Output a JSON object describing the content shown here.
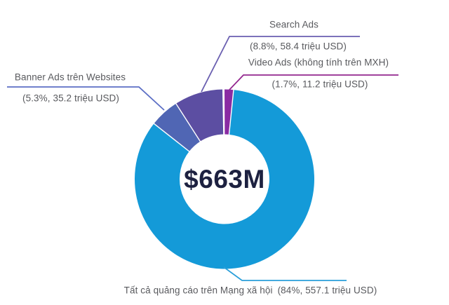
{
  "chart_data": {
    "type": "pie",
    "variant": "donut",
    "center_label": "$663M",
    "unit": "triệu USD",
    "legend_position": "callouts",
    "start_angle_deg": -0.3,
    "segments": [
      {
        "key": "video",
        "label": "Video Ads (không tính trên MXH)",
        "pct": 1.7,
        "value_trieu_usd": 11.2,
        "color": "#8a2ba3"
      },
      {
        "key": "social",
        "label": "Tất cả quảng cáo trên Mạng xã hội",
        "pct": 84,
        "value_trieu_usd": 557.1,
        "color": "#149ad8"
      },
      {
        "key": "banner",
        "label": "Banner Ads trên Websites",
        "pct": 5.3,
        "value_trieu_usd": 35.2,
        "color": "#5066b4"
      },
      {
        "key": "search",
        "label": "Search Ads",
        "pct": 8.8,
        "value_trieu_usd": 58.4,
        "color": "#5c4ea2"
      },
      {
        "key": "other",
        "label": "",
        "pct": 0.2,
        "color": "#c9c5de"
      }
    ]
  },
  "callouts": {
    "search": {
      "title": "Search Ads",
      "value": "(8.8%, 58.4 triệu USD)",
      "line_color": "#6a5fb0"
    },
    "video": {
      "title": "Video Ads (không tính trên MXH)",
      "value": "(1.7%, 11.2 triệu USD)",
      "line_color": "#93278f"
    },
    "banner": {
      "title": "Banner Ads trên Websites",
      "value": "(5.3%, 35.2 triệu USD)",
      "line_color": "#5c6fc5"
    },
    "social": {
      "title": "Tất cả quảng cáo trên Mạng xã hội",
      "value": "(84%, 557.1 triệu USD)",
      "line_color": "#2a9fda"
    }
  },
  "colors": {
    "center_text": "#1d2140",
    "label_text": "#595a5e",
    "background": "#ffffff",
    "separator": "#ffffff"
  }
}
